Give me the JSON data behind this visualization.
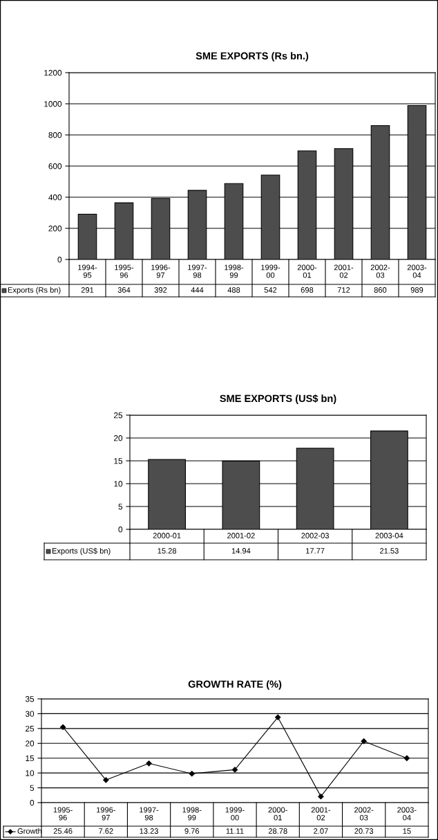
{
  "chart_data": [
    {
      "type": "bar",
      "title": "SME EXPORTS (Rs bn.)",
      "categories": [
        "1994-95",
        "1995-96",
        "1996-97",
        "1997-98",
        "1998-99",
        "1999-00",
        "2000-01",
        "2001-02",
        "2002-03",
        "2003-04"
      ],
      "series": [
        {
          "name": "Exports (Rs bn)",
          "color": "#4d4d4d",
          "values": [
            291,
            364,
            392,
            444,
            488,
            542,
            698,
            712,
            860,
            989
          ]
        }
      ],
      "ylim": [
        0,
        1200
      ],
      "yticks": [
        0,
        200,
        400,
        600,
        800,
        1000,
        1200
      ],
      "grid": "y",
      "data_labels": true,
      "legend": "bottom"
    },
    {
      "type": "bar",
      "title": "SME EXPORTS (US$ bn)",
      "categories": [
        "2000-01",
        "2001-02",
        "2002-03",
        "2003-04"
      ],
      "series": [
        {
          "name": "Exports (US$ bn)",
          "color": "#4d4d4d",
          "values": [
            15.28,
            14.94,
            17.77,
            21.53
          ]
        }
      ],
      "ylim": [
        0,
        25
      ],
      "yticks": [
        0,
        5,
        10,
        15,
        20,
        25
      ],
      "grid": "y",
      "data_labels": true,
      "legend": "bottom"
    },
    {
      "type": "line",
      "title": "GROWTH RATE (%)",
      "categories": [
        "1995-96",
        "1996-97",
        "1997-98",
        "1998-99",
        "1999-00",
        "2000-01",
        "2001-02",
        "2002-03",
        "2003-04"
      ],
      "series": [
        {
          "name": "Growth",
          "color": "#000000",
          "values": [
            25.46,
            7.62,
            13.23,
            9.76,
            11.11,
            28.78,
            2.07,
            20.73,
            15
          ]
        }
      ],
      "ylim": [
        0,
        35
      ],
      "yticks": [
        0,
        5,
        10,
        15,
        20,
        25,
        30,
        35
      ],
      "grid": "y",
      "data_labels": true,
      "legend": "bottom",
      "marker": "diamond",
      "line_style": "solid"
    }
  ]
}
